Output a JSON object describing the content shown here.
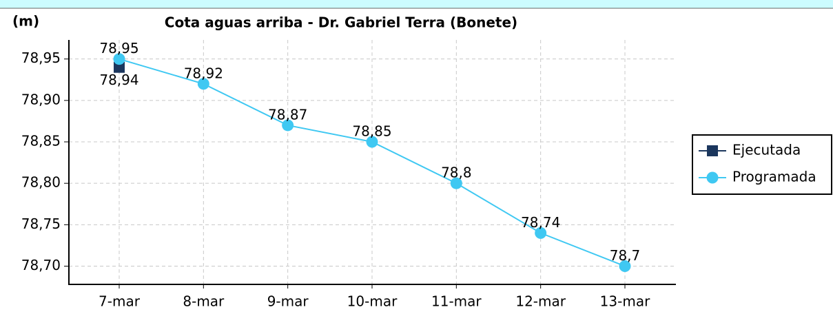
{
  "chart_data": {
    "type": "line",
    "title": "Cota aguas arriba - Dr. Gabriel Terra (Bonete)",
    "y_label": "(m)",
    "categories": [
      "7-mar",
      "8-mar",
      "9-mar",
      "10-mar",
      "11-mar",
      "12-mar",
      "13-mar"
    ],
    "series": [
      {
        "name": "Ejecutada",
        "color": "#1b365d",
        "marker": "square",
        "values": [
          78.94,
          null,
          null,
          null,
          null,
          null,
          null
        ],
        "value_labels": [
          "78,94",
          null,
          null,
          null,
          null,
          null,
          null
        ]
      },
      {
        "name": "Programada",
        "color": "#3fc8f2",
        "marker": "circle",
        "values": [
          78.95,
          78.92,
          78.87,
          78.85,
          78.8,
          78.74,
          78.7
        ],
        "value_labels": [
          "78,95",
          "78,92",
          "78,87",
          "78,85",
          "78,8",
          "78,74",
          "78,7"
        ]
      }
    ],
    "ylim": [
      78.678,
      78.973
    ],
    "yticks": [
      {
        "value": 78.7,
        "label": "78,70"
      },
      {
        "value": 78.75,
        "label": "78,75"
      },
      {
        "value": 78.8,
        "label": "78,80"
      },
      {
        "value": 78.85,
        "label": "78,85"
      },
      {
        "value": 78.9,
        "label": "78,90"
      },
      {
        "value": 78.95,
        "label": "78,95"
      }
    ],
    "grid": true,
    "legend": "right"
  }
}
